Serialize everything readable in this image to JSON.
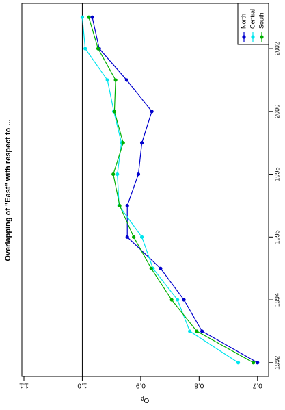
{
  "chart_data": {
    "type": "line",
    "title": "Overlapping of \"East\" with respect to ...",
    "ylabel": "O",
    "ylabel_sub": "β",
    "x": [
      1992,
      1993,
      1994,
      1995,
      1996,
      1997,
      1998,
      1999,
      2000,
      2001,
      2002,
      2003
    ],
    "xlim": [
      1991.56,
      2003.44
    ],
    "xticks": [
      1992,
      1994,
      1996,
      1998,
      2000,
      2002
    ],
    "ylim": [
      0.681,
      1.1035
    ],
    "yticks": [
      0.7,
      0.8,
      0.9,
      {
        "value": 1,
        "label": "1.0"
      },
      1.1
    ],
    "hline": 1,
    "legend": "bottom right",
    "series": [
      {
        "name": "North",
        "color": "#0000cd",
        "values": [
          0.7,
          0.795,
          0.826,
          0.866,
          0.923,
          0.923,
          0.904,
          0.898,
          0.881,
          0.924,
          0.971,
          0.983
        ]
      },
      {
        "name": "Central",
        "color": "#00e5ee",
        "values": [
          0.733,
          0.816,
          0.837,
          0.879,
          0.898,
          0.937,
          0.94,
          0.933,
          0.946,
          0.957,
          0.995,
          1.0
        ]
      },
      {
        "name": "South",
        "color": "#00b000",
        "values": [
          0.707,
          0.804,
          0.847,
          0.882,
          0.912,
          0.936,
          0.947,
          0.93,
          0.945,
          0.943,
          0.973,
          0.989
        ]
      }
    ]
  }
}
